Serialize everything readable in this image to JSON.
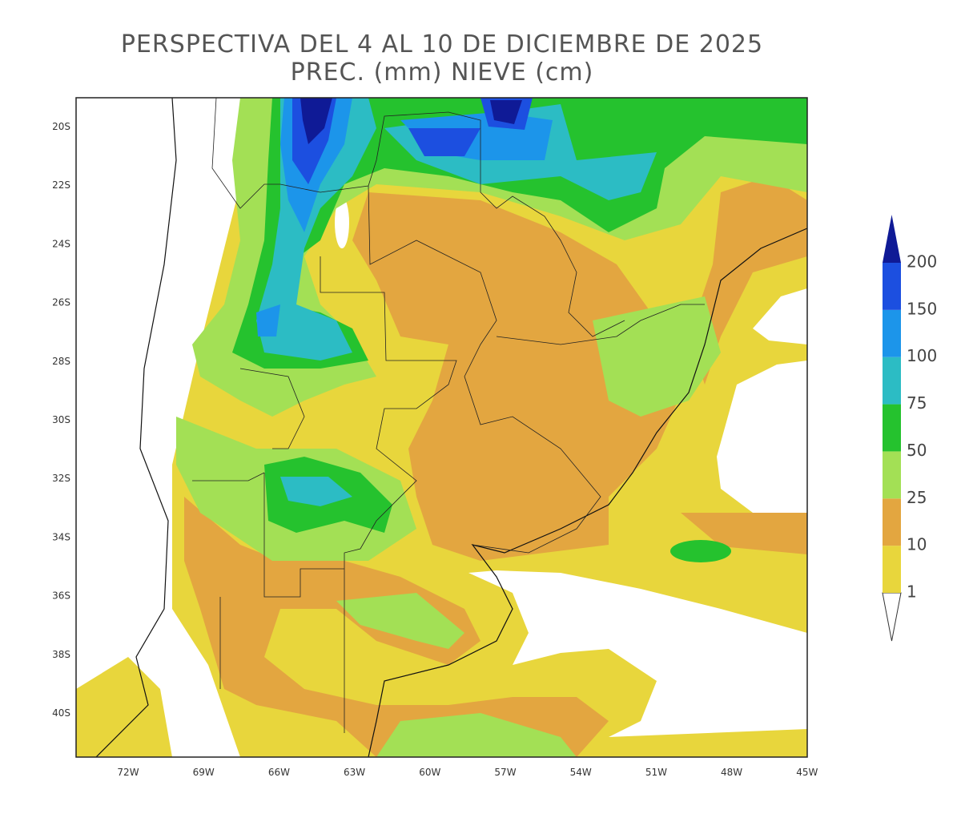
{
  "header": {
    "title": "PERSPECTIVA DEL 4 AL 10 DE DICIEMBRE DE 2025",
    "subtitle": "PREC. (mm) NIEVE (cm)"
  },
  "map": {
    "lat_labels": [
      "20S",
      "22S",
      "24S",
      "26S",
      "28S",
      "30S",
      "32S",
      "34S",
      "36S",
      "38S",
      "40S"
    ],
    "lon_labels": [
      "72W",
      "69W",
      "66W",
      "63W",
      "60W",
      "57W",
      "54W",
      "51W",
      "48W",
      "45W"
    ]
  },
  "legend": {
    "levels": [
      1,
      10,
      25,
      50,
      75,
      100,
      150,
      200
    ],
    "colors": [
      "#ffffff",
      "#e8d63c",
      "#e3a640",
      "#a3e055",
      "#25c22e",
      "#2cbcc4",
      "#1c95ea",
      "#1c4fe0",
      "#0f1a96"
    ]
  }
}
